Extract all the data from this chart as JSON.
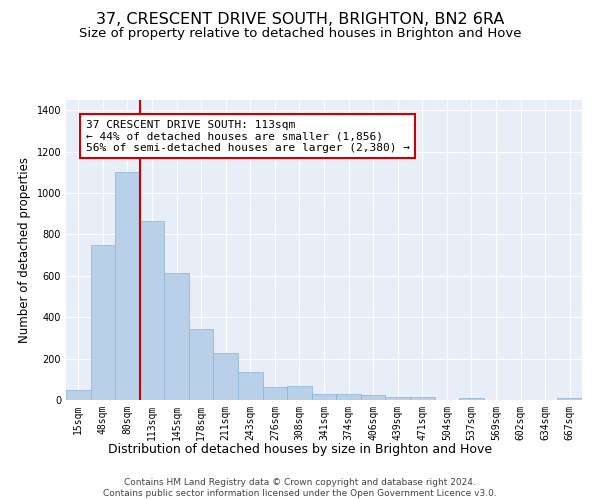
{
  "title": "37, CRESCENT DRIVE SOUTH, BRIGHTON, BN2 6RA",
  "subtitle": "Size of property relative to detached houses in Brighton and Hove",
  "xlabel": "Distribution of detached houses by size in Brighton and Hove",
  "ylabel": "Number of detached properties",
  "bar_color": "#b8d0e8",
  "bar_edge_color": "#8ab4d8",
  "background_color": "#e8eef8",
  "grid_color": "#ffffff",
  "categories": [
    "15sqm",
    "48sqm",
    "80sqm",
    "113sqm",
    "145sqm",
    "178sqm",
    "211sqm",
    "243sqm",
    "276sqm",
    "308sqm",
    "341sqm",
    "374sqm",
    "406sqm",
    "439sqm",
    "471sqm",
    "504sqm",
    "537sqm",
    "569sqm",
    "602sqm",
    "634sqm",
    "667sqm"
  ],
  "values": [
    48,
    750,
    1100,
    865,
    615,
    345,
    225,
    135,
    65,
    70,
    30,
    30,
    22,
    15,
    15,
    0,
    12,
    0,
    0,
    0,
    12
  ],
  "ylim": [
    0,
    1450
  ],
  "yticks": [
    0,
    200,
    400,
    600,
    800,
    1000,
    1200,
    1400
  ],
  "property_line_idx": 3,
  "property_line_color": "#cc0000",
  "annotation_line1": "37 CRESCENT DRIVE SOUTH: 113sqm",
  "annotation_line2": "← 44% of detached houses are smaller (1,856)",
  "annotation_line3": "56% of semi-detached houses are larger (2,380) →",
  "annotation_box_color": "#cc0000",
  "footer_line1": "Contains HM Land Registry data © Crown copyright and database right 2024.",
  "footer_line2": "Contains public sector information licensed under the Open Government Licence v3.0.",
  "title_fontsize": 11.5,
  "subtitle_fontsize": 9.5,
  "xlabel_fontsize": 9,
  "ylabel_fontsize": 8.5,
  "tick_fontsize": 7,
  "annotation_fontsize": 8,
  "footer_fontsize": 6.5
}
